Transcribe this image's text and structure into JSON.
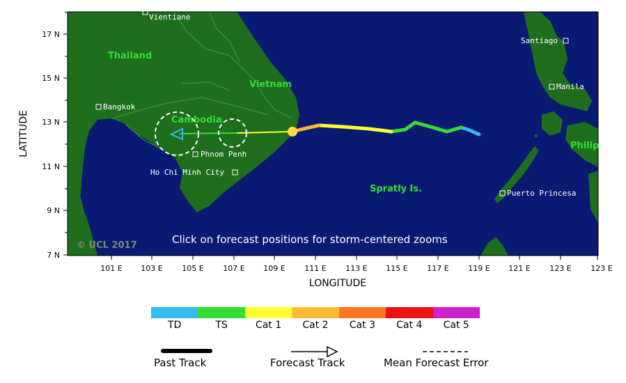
{
  "map": {
    "x_axis_title": "LONGITUDE",
    "y_axis_title": "LATITUDE",
    "lon_ticks": [
      "101 E",
      "103 E",
      "105 E",
      "107 E",
      "109 E",
      "111 E",
      "113 E",
      "115 E",
      "117 E",
      "119 E",
      "121 E",
      "123 E"
    ],
    "lat_ticks": [
      "17 N",
      "15 N",
      "13 N",
      "11 N",
      "9 N",
      "7 N"
    ],
    "country_labels": {
      "thailand": "Thailand",
      "vietnam": "Vietnam",
      "cambodia": "Cambodia",
      "spratly": "Spratly Is.",
      "philippines": "Philip"
    },
    "city_labels": {
      "vientiane": "Vientiane",
      "bangkok": "Bangkok",
      "phnom_penh": "Phnom Penh",
      "ho_chi_minh": "Ho Chi Minh City",
      "santiago": "Santiago",
      "manila": "Manila",
      "puerto_princesa": "Puerto Princesa"
    },
    "note": "Click on forecast positions for storm-centered zooms",
    "copyright": "© UCL 2017",
    "colors": {
      "ocean": "#0a1a73",
      "land": "#1e6e1e",
      "border": "#3f8f3f"
    }
  },
  "legend": {
    "categories": [
      {
        "label": "TD",
        "color": "#33bbee"
      },
      {
        "label": "TS",
        "color": "#33dd33"
      },
      {
        "label": "Cat 1",
        "color": "#ffff33"
      },
      {
        "label": "Cat 2",
        "color": "#ffbb33"
      },
      {
        "label": "Cat 3",
        "color": "#ff7722"
      },
      {
        "label": "Cat 4",
        "color": "#ee1111"
      },
      {
        "label": "Cat 5",
        "color": "#cc22cc"
      }
    ],
    "past_track_label": "Past Track",
    "forecast_track_label": "Forecast Track",
    "mean_error_label": "Mean Forecast Error"
  }
}
